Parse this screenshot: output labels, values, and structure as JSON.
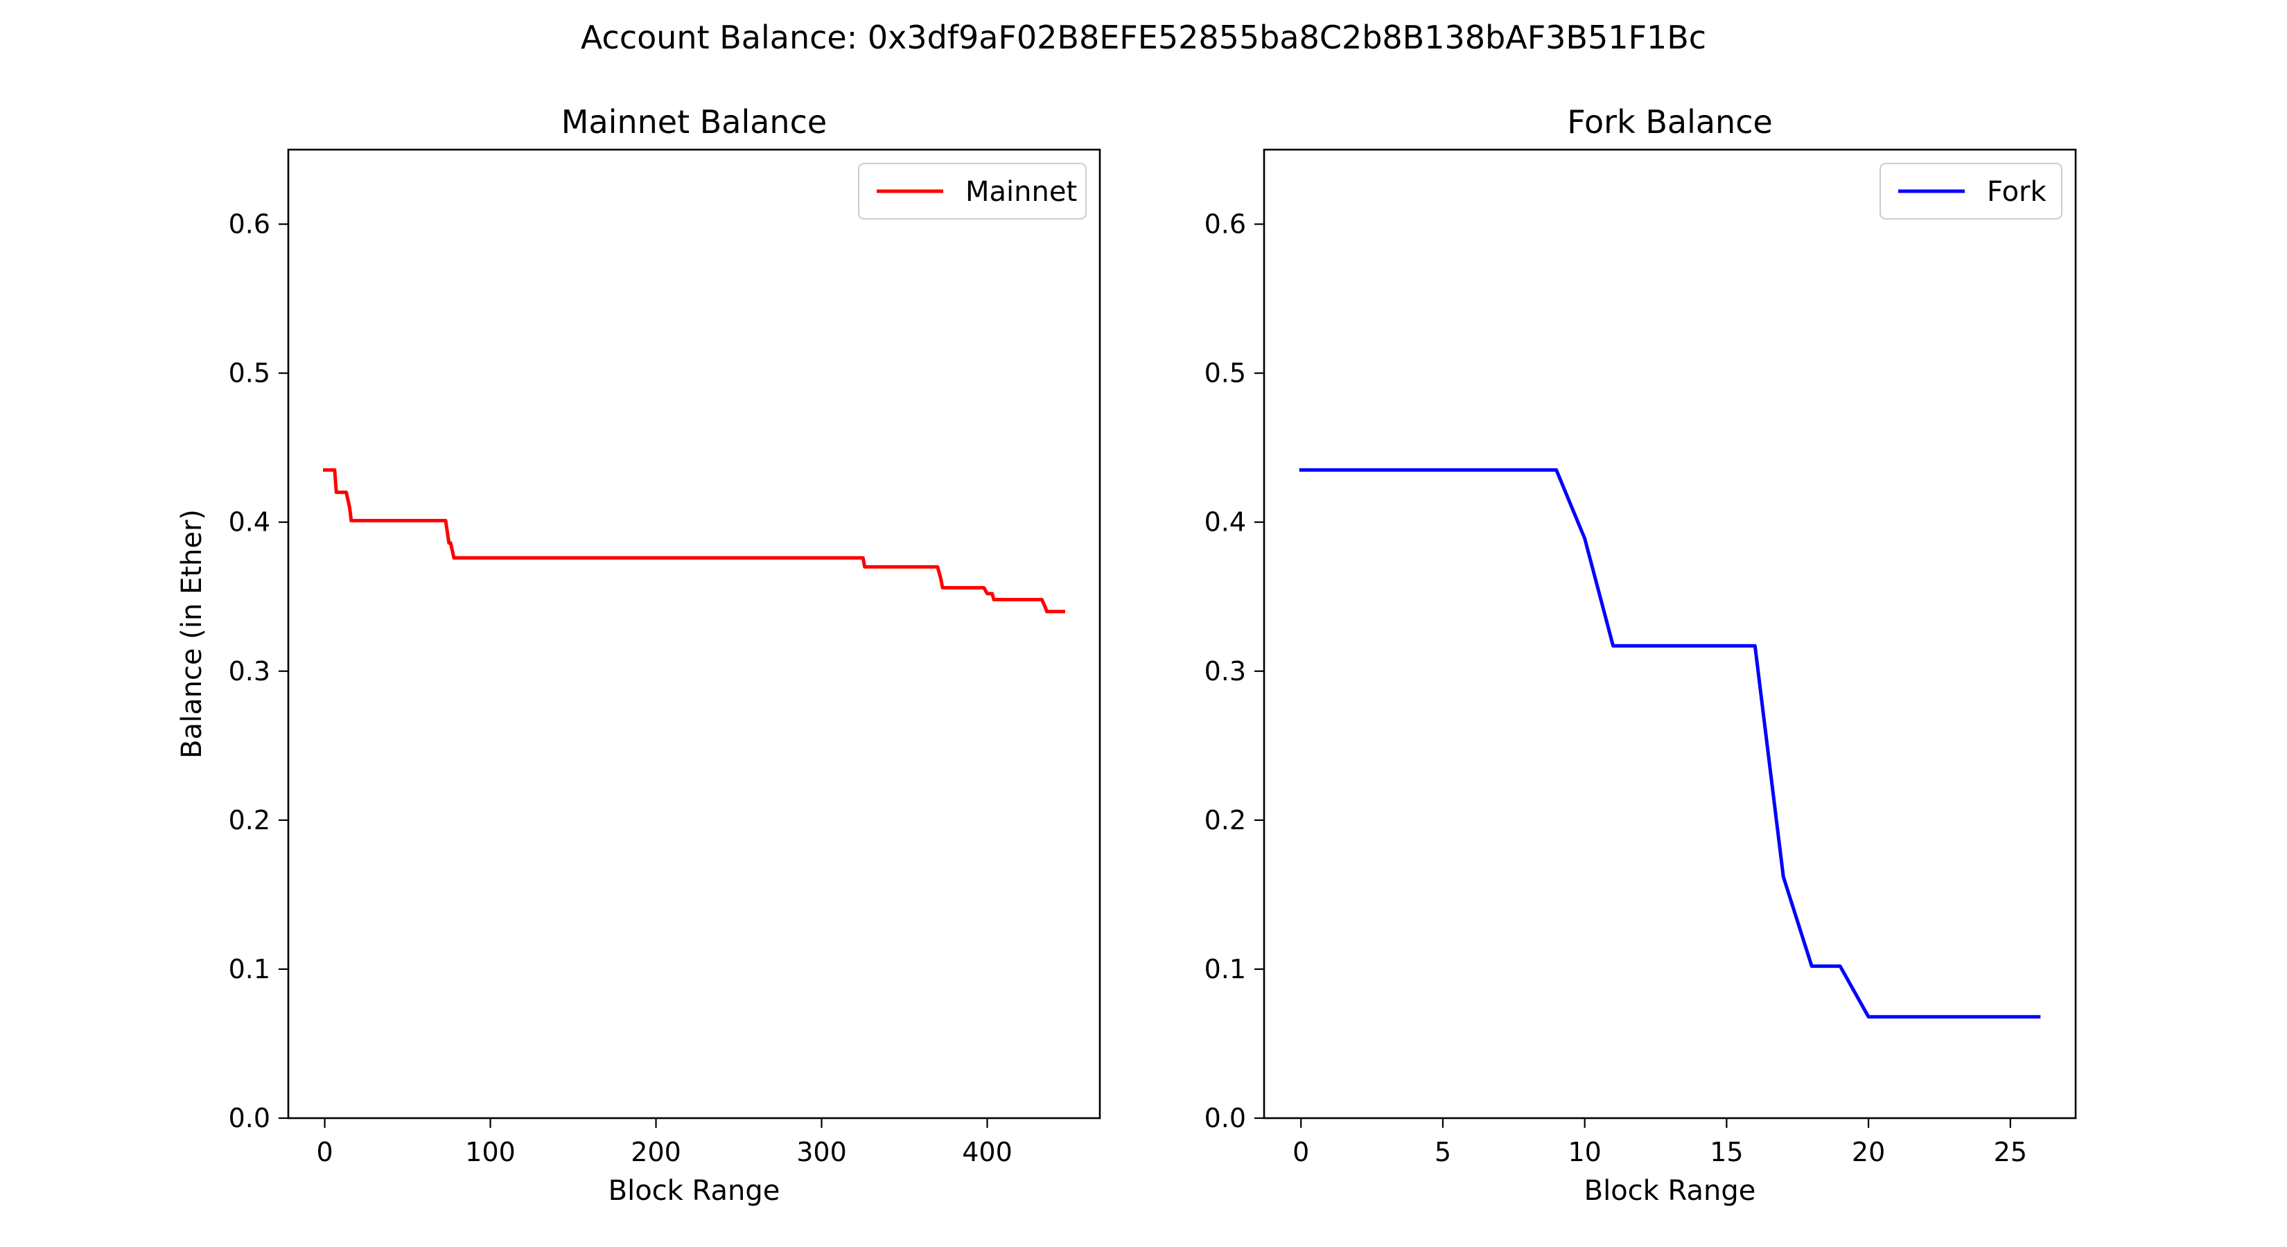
{
  "figure": {
    "suptitle": "Account Balance: 0x3df9aF02B8EFE52855ba8C2b8B138bAF3B51F1Bc"
  },
  "chart_data": [
    {
      "type": "line",
      "title": "Mainnet Balance",
      "xlabel": "Block Range",
      "ylabel": "Balance (in Ether)",
      "xlim": [
        -22,
        468
      ],
      "ylim": [
        0.0,
        0.65
      ],
      "xticks": [
        0,
        100,
        200,
        300,
        400
      ],
      "yticks": [
        0.0,
        0.1,
        0.2,
        0.3,
        0.4,
        0.5,
        0.6
      ],
      "ytick_labels": [
        "0.0",
        "0.1",
        "0.2",
        "0.3",
        "0.4",
        "0.5",
        "0.6"
      ],
      "legend": "top-right",
      "series": [
        {
          "name": "Mainnet",
          "color": "#ff0000",
          "x": [
            0,
            6,
            7,
            13,
            15,
            16,
            73,
            75,
            76,
            77,
            78,
            323,
            325,
            326,
            370,
            372,
            373,
            398,
            400,
            403,
            404,
            433,
            435,
            436,
            446
          ],
          "y": [
            0.435,
            0.435,
            0.42,
            0.42,
            0.41,
            0.401,
            0.401,
            0.386,
            0.386,
            0.381,
            0.376,
            0.376,
            0.376,
            0.37,
            0.37,
            0.362,
            0.356,
            0.356,
            0.352,
            0.352,
            0.348,
            0.348,
            0.343,
            0.34,
            0.34
          ]
        }
      ]
    },
    {
      "type": "line",
      "title": "Fork Balance",
      "xlabel": "Block Range",
      "ylabel": "",
      "xlim": [
        -1.3,
        27.3
      ],
      "ylim": [
        0.0,
        0.65
      ],
      "xticks": [
        0,
        5,
        10,
        15,
        20,
        25
      ],
      "yticks": [
        0.0,
        0.1,
        0.2,
        0.3,
        0.4,
        0.5,
        0.6
      ],
      "ytick_labels": [
        "0.0",
        "0.1",
        "0.2",
        "0.3",
        "0.4",
        "0.5",
        "0.6"
      ],
      "legend": "top-right",
      "series": [
        {
          "name": "Fork",
          "color": "#0000ff",
          "x": [
            0,
            1,
            2,
            3,
            4,
            5,
            6,
            7,
            8,
            9,
            10,
            11,
            12,
            13,
            14,
            15,
            16,
            17,
            18,
            19,
            20,
            21,
            22,
            23,
            24,
            25,
            26
          ],
          "y": [
            0.435,
            0.435,
            0.435,
            0.435,
            0.435,
            0.435,
            0.435,
            0.435,
            0.435,
            0.435,
            0.389,
            0.317,
            0.317,
            0.317,
            0.317,
            0.317,
            0.317,
            0.162,
            0.102,
            0.102,
            0.068,
            0.068,
            0.068,
            0.068,
            0.068,
            0.068,
            0.068
          ]
        }
      ]
    }
  ]
}
